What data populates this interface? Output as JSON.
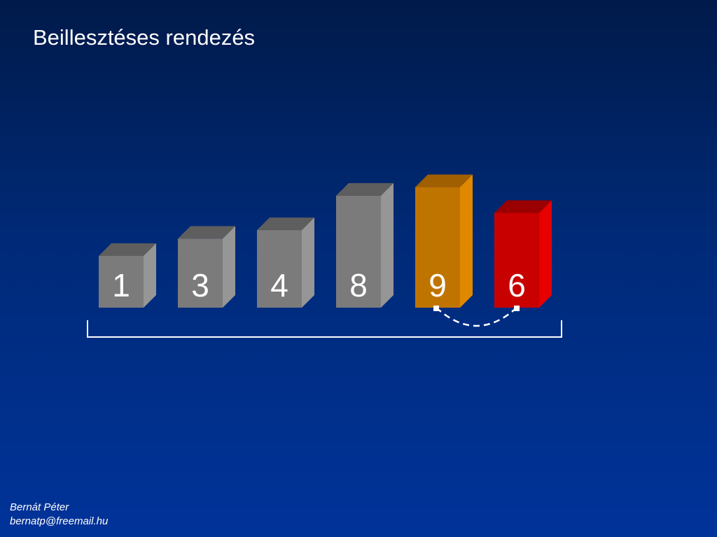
{
  "slide": {
    "title": "Beillesztéses rendezés"
  },
  "bars": [
    {
      "value": 1,
      "label": "1",
      "state": "sorted",
      "colors": {
        "front": "#7b7b7b",
        "side": "#969696",
        "top": "#5e5e5e"
      }
    },
    {
      "value": 3,
      "label": "3",
      "state": "sorted",
      "colors": {
        "front": "#7b7b7b",
        "side": "#969696",
        "top": "#5e5e5e"
      }
    },
    {
      "value": 4,
      "label": "4",
      "state": "sorted",
      "colors": {
        "front": "#7b7b7b",
        "side": "#969696",
        "top": "#5e5e5e"
      }
    },
    {
      "value": 8,
      "label": "8",
      "state": "sorted",
      "colors": {
        "front": "#7b7b7b",
        "side": "#969696",
        "top": "#5e5e5e"
      }
    },
    {
      "value": 9,
      "label": "9",
      "state": "compare",
      "colors": {
        "front": "#c07400",
        "side": "#e08800",
        "top": "#a05f00"
      }
    },
    {
      "value": 6,
      "label": "6",
      "state": "inserting",
      "colors": {
        "front": "#c80000",
        "side": "#e60000",
        "top": "#9a0000"
      }
    }
  ],
  "swap_arc": {
    "from_index": 4,
    "to_index": 5
  },
  "footer": {
    "author": "Bernát Péter",
    "email": "bernatp@freemail.hu"
  }
}
